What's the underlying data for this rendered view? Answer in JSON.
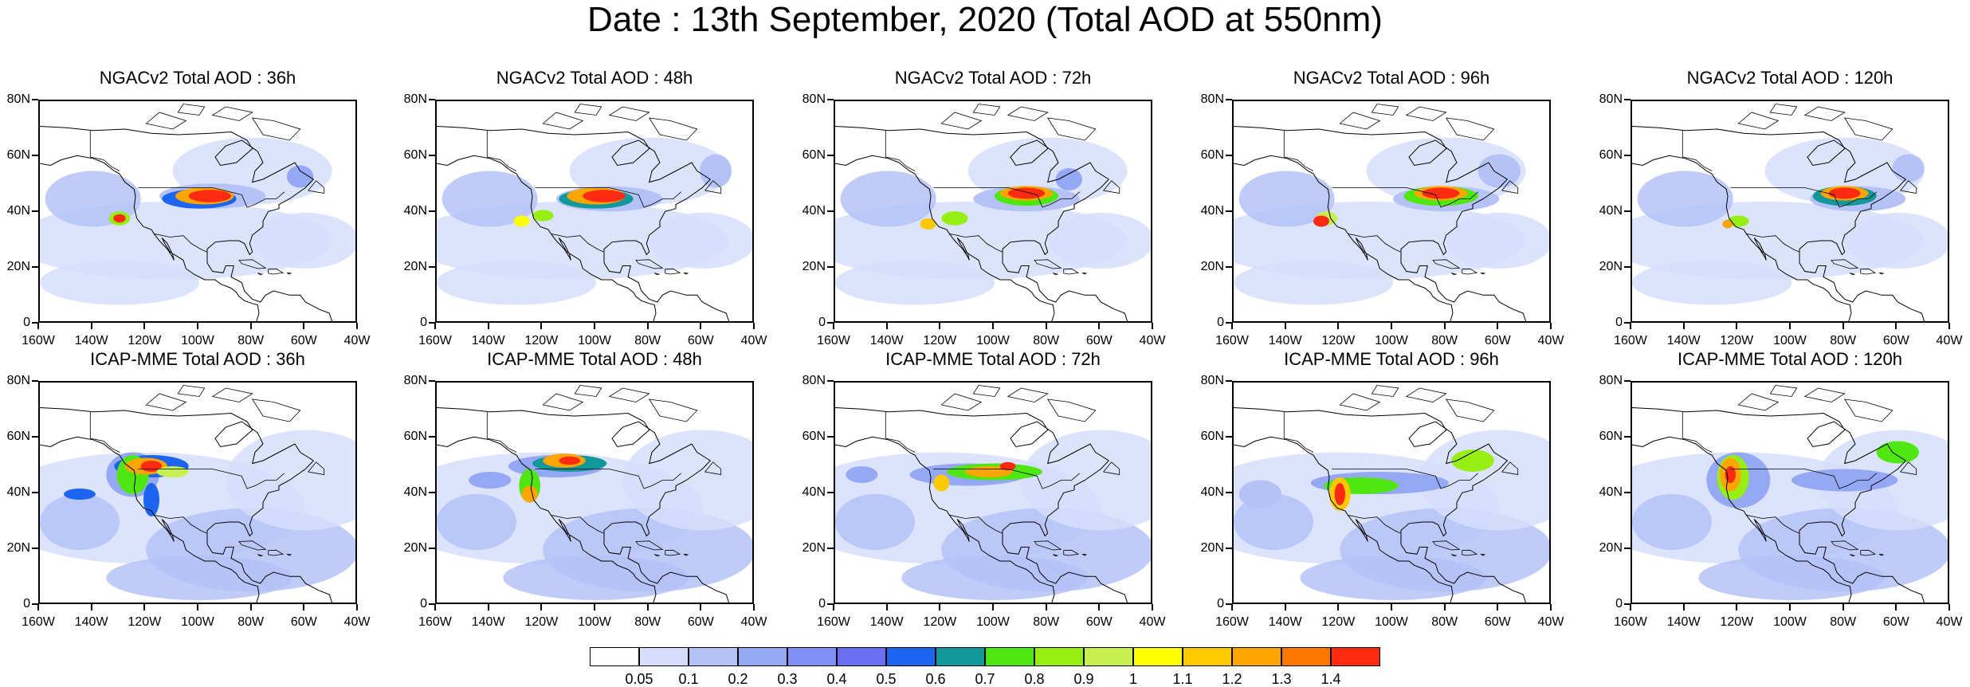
{
  "title": "Date : 13th September, 2020 (Total AOD at 550nm)",
  "ylabels": [
    "80N",
    "60N",
    "40N",
    "20N",
    "0"
  ],
  "xlabels": [
    "160W",
    "140W",
    "120W",
    "100W",
    "80W",
    "60W",
    "40W"
  ],
  "rows": [
    {
      "model": "NGACv2",
      "panels": [
        {
          "title": "NGACv2 Total AOD : 36h"
        },
        {
          "title": "NGACv2 Total AOD : 48h"
        },
        {
          "title": "NGACv2 Total AOD : 72h"
        },
        {
          "title": "NGACv2 Total AOD : 96h"
        },
        {
          "title": "NGACv2 Total AOD : 120h"
        }
      ]
    },
    {
      "model": "ICAP-MME",
      "panels": [
        {
          "title": "ICAP-MME Total AOD : 36h"
        },
        {
          "title": "ICAP-MME Total AOD : 48h"
        },
        {
          "title": "ICAP-MME Total AOD : 72h"
        },
        {
          "title": "ICAP-MME Total AOD : 96h"
        },
        {
          "title": "ICAP-MME Total AOD : 120h"
        }
      ]
    }
  ],
  "colorbar": {
    "colors": [
      "#ffffff",
      "#d6defc",
      "#b4c2f8",
      "#94a8f6",
      "#7f8ff5",
      "#6a6ef0",
      "#1d64f0",
      "#12989a",
      "#4fe612",
      "#97ee12",
      "#c5f050",
      "#fefe00",
      "#fec900",
      "#fea500",
      "#fe7800",
      "#fe2a12"
    ],
    "labels": [
      "0.05",
      "0.1",
      "0.2",
      "0.3",
      "0.4",
      "0.5",
      "0.6",
      "0.7",
      "0.8",
      "0.9",
      "1",
      "1.1",
      "1.2",
      "1.3",
      "1.4"
    ]
  }
}
